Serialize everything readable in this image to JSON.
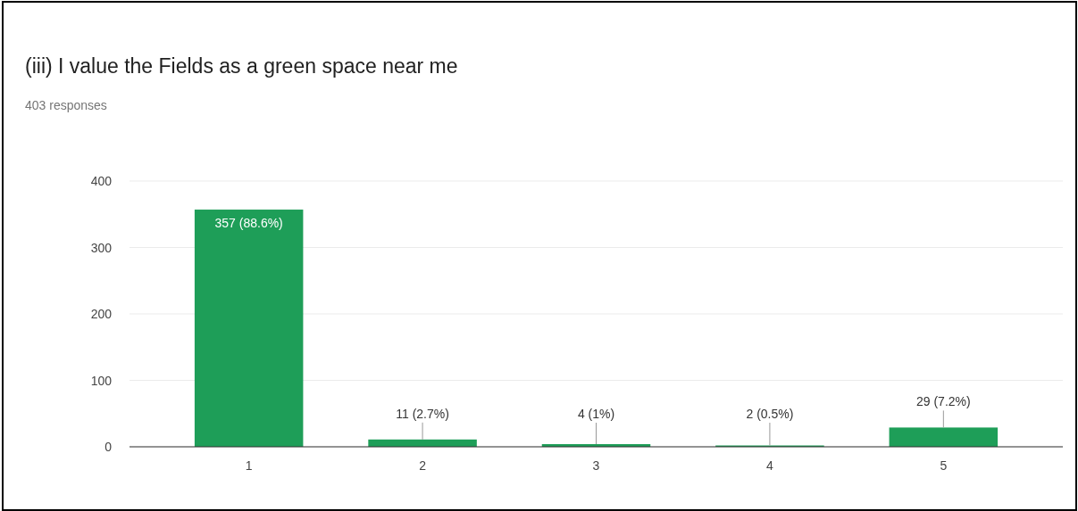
{
  "chart_data": {
    "type": "bar",
    "title": "(iii) I value the Fields as a green space near me",
    "subtitle": "403 responses",
    "categories": [
      "1",
      "2",
      "3",
      "4",
      "5"
    ],
    "values": [
      357,
      11,
      4,
      2,
      29
    ],
    "value_labels": [
      "357 (88.6%)",
      "11 (2.7%)",
      "4 (1%)",
      "2 (0.5%)",
      "29 (7.2%)"
    ],
    "color": "#1e9e58",
    "ylim": [
      0,
      400
    ],
    "yticks": [
      0,
      100,
      200,
      300,
      400
    ],
    "grid": "y"
  }
}
